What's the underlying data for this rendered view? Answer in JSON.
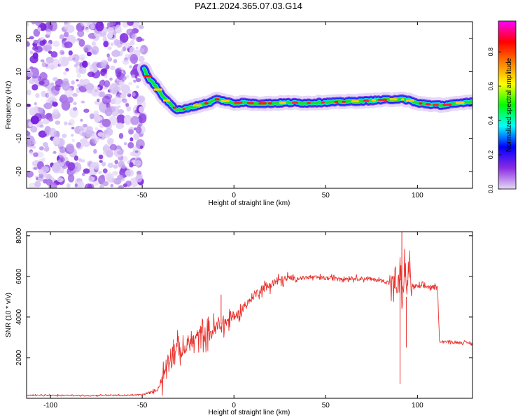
{
  "title": "PAZ1.2024.365.07.03.G14",
  "chart_data": [
    {
      "type": "heatmap",
      "xlabel": "Height of straight line (km)",
      "ylabel": "Frequency (Hz)",
      "xlim": [
        -113,
        130
      ],
      "ylim": [
        -25,
        25
      ],
      "xticks": [
        -100,
        -50,
        0,
        50,
        100
      ],
      "yticks": [
        -20,
        -10,
        0,
        10,
        20
      ],
      "noise_region_x": [
        -113,
        -49
      ],
      "ridge": {
        "x": [
          -49,
          -46,
          -43,
          -40,
          -37,
          -34,
          -31,
          -28,
          -25,
          -22,
          -19,
          -15,
          -12,
          -10,
          -5,
          0,
          5,
          10,
          20,
          30,
          40,
          50,
          60,
          70,
          80,
          90,
          95,
          98,
          100,
          105,
          110,
          115,
          120,
          125,
          130
        ],
        "y": [
          11,
          7.5,
          6,
          3.5,
          1.5,
          0,
          -1.5,
          -1.3,
          -1,
          -0.5,
          0,
          0.5,
          1,
          1.8,
          1.2,
          0.5,
          0.8,
          0.5,
          0.5,
          0.7,
          0.6,
          0.8,
          1,
          1.2,
          1.5,
          1.8,
          1.5,
          1,
          0.5,
          0.3,
          0,
          0,
          0.3,
          0.8,
          1
        ]
      },
      "colorbar": {
        "label": "Normalized spectral amplitude",
        "ticks": [
          0.0,
          0.2,
          0.4,
          0.6,
          0.8
        ],
        "tick_labels": [
          "0.0",
          "0.2",
          "0.4",
          "0.6",
          "0.8"
        ],
        "range": [
          0,
          0.98
        ],
        "colors": [
          "#e6d9f5",
          "#8a2be2",
          "#0000ff",
          "#00ffff",
          "#00ff00",
          "#ffff00",
          "#ff7f00",
          "#ff0000",
          "#ff00ff"
        ]
      }
    },
    {
      "type": "line",
      "xlabel": "Height of straight line (km)",
      "ylabel": "SNR (10 * v/v)",
      "xlim": [
        -113,
        130
      ],
      "ylim": [
        0,
        8200
      ],
      "xticks": [
        -100,
        -50,
        0,
        50,
        100
      ],
      "yticks": [
        2000,
        4000,
        6000,
        8000
      ],
      "line_color": "#e8302b",
      "series": [
        {
          "x": [
            -113,
            -100,
            -90,
            -80,
            -70,
            -60,
            -50,
            -45,
            -42,
            -40,
            -38,
            -36,
            -34,
            -32,
            -30,
            -28,
            -25,
            -22,
            -20,
            -18,
            -15,
            -12,
            -10,
            -8,
            -5,
            -2,
            0,
            3,
            5,
            8,
            10,
            13,
            15,
            18,
            20,
            23,
            25,
            28,
            30,
            35,
            40,
            45,
            50,
            55,
            60,
            65,
            70,
            75,
            80,
            85,
            88,
            90,
            91,
            92,
            93,
            94,
            95,
            97,
            100,
            105,
            110,
            111,
            112,
            115,
            120,
            125,
            130
          ],
          "y": [
            150,
            140,
            150,
            130,
            160,
            140,
            180,
            300,
            400,
            700,
            1200,
            1900,
            2200,
            2400,
            2500,
            2200,
            2700,
            2800,
            3000,
            3200,
            3100,
            3300,
            3400,
            3600,
            3700,
            3900,
            4000,
            4200,
            4500,
            4700,
            5000,
            5200,
            5400,
            5500,
            5600,
            5700,
            5800,
            5850,
            5900,
            5900,
            5950,
            5950,
            5900,
            5950,
            5900,
            5900,
            5900,
            5850,
            5800,
            5700,
            5500,
            5600,
            6200,
            4500,
            7000,
            5000,
            6500,
            5500,
            5500,
            5500,
            5450,
            5400,
            2800,
            2800,
            2750,
            2750,
            2700
          ],
          "spikes": [
            {
              "x": 91.5,
              "y": 8200
            },
            {
              "x": 90.5,
              "y": 700
            },
            {
              "x": 94.0,
              "y": 2500
            },
            {
              "x": -7.0,
              "y": 5100
            },
            {
              "x": -33.0,
              "y": 2900
            }
          ]
        }
      ]
    }
  ]
}
